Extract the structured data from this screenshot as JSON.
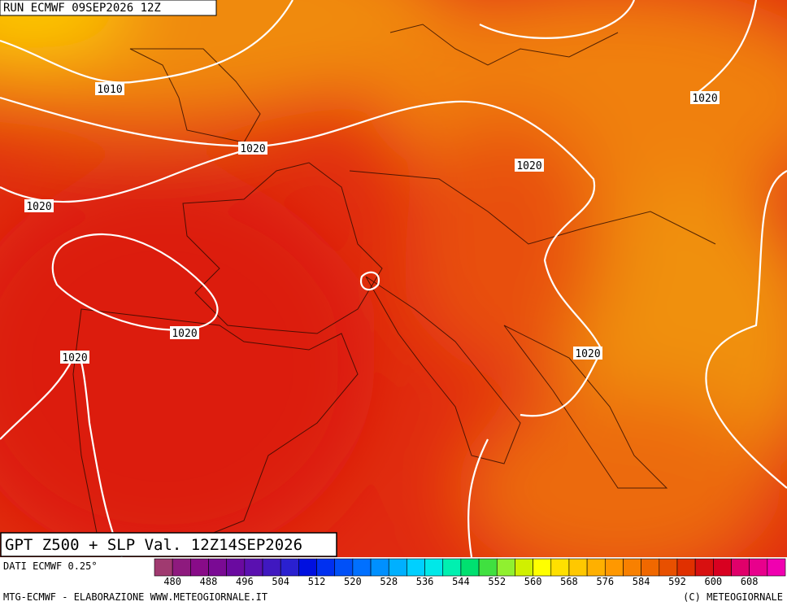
{
  "run_label": "RUN ECMWF 09SEP2026 12Z",
  "isobar_labels": [
    "1010",
    "1020",
    "1020",
    "1020",
    "1020",
    "1020",
    "1020",
    "1020"
  ],
  "map_title": "GPT Z500 + SLP Val. 12Z14SEP2026",
  "data_source": "DATI ECMWF 0.25°",
  "colorbar": {
    "ticks": [
      480,
      488,
      496,
      504,
      512,
      520,
      528,
      536,
      544,
      552,
      560,
      568,
      576,
      584,
      592,
      600,
      608
    ],
    "colors": [
      "#a03a70",
      "#8e1a7e",
      "#880b88",
      "#7a0a94",
      "#6a0aa0",
      "#5a10b0",
      "#4018c0",
      "#2a20d0",
      "#0010e0",
      "#0030f0",
      "#0050f8",
      "#0070ff",
      "#0090ff",
      "#00b0ff",
      "#00d0ff",
      "#00e8e8",
      "#00f0b0",
      "#00e070",
      "#40e040",
      "#90f030",
      "#d0f000",
      "#ffff00",
      "#ffe000",
      "#ffc800",
      "#ffb000",
      "#ff9800",
      "#f88000",
      "#f06800",
      "#e85000",
      "#e03000",
      "#d81010",
      "#d80020",
      "#e0006a",
      "#e8008c",
      "#f000b0"
    ]
  },
  "footer_left": "MTG-ECMWF - ELABORAZIONE WWW.METEOGIORNALE.IT",
  "footer_right": "(C) METEOGIORNALE"
}
